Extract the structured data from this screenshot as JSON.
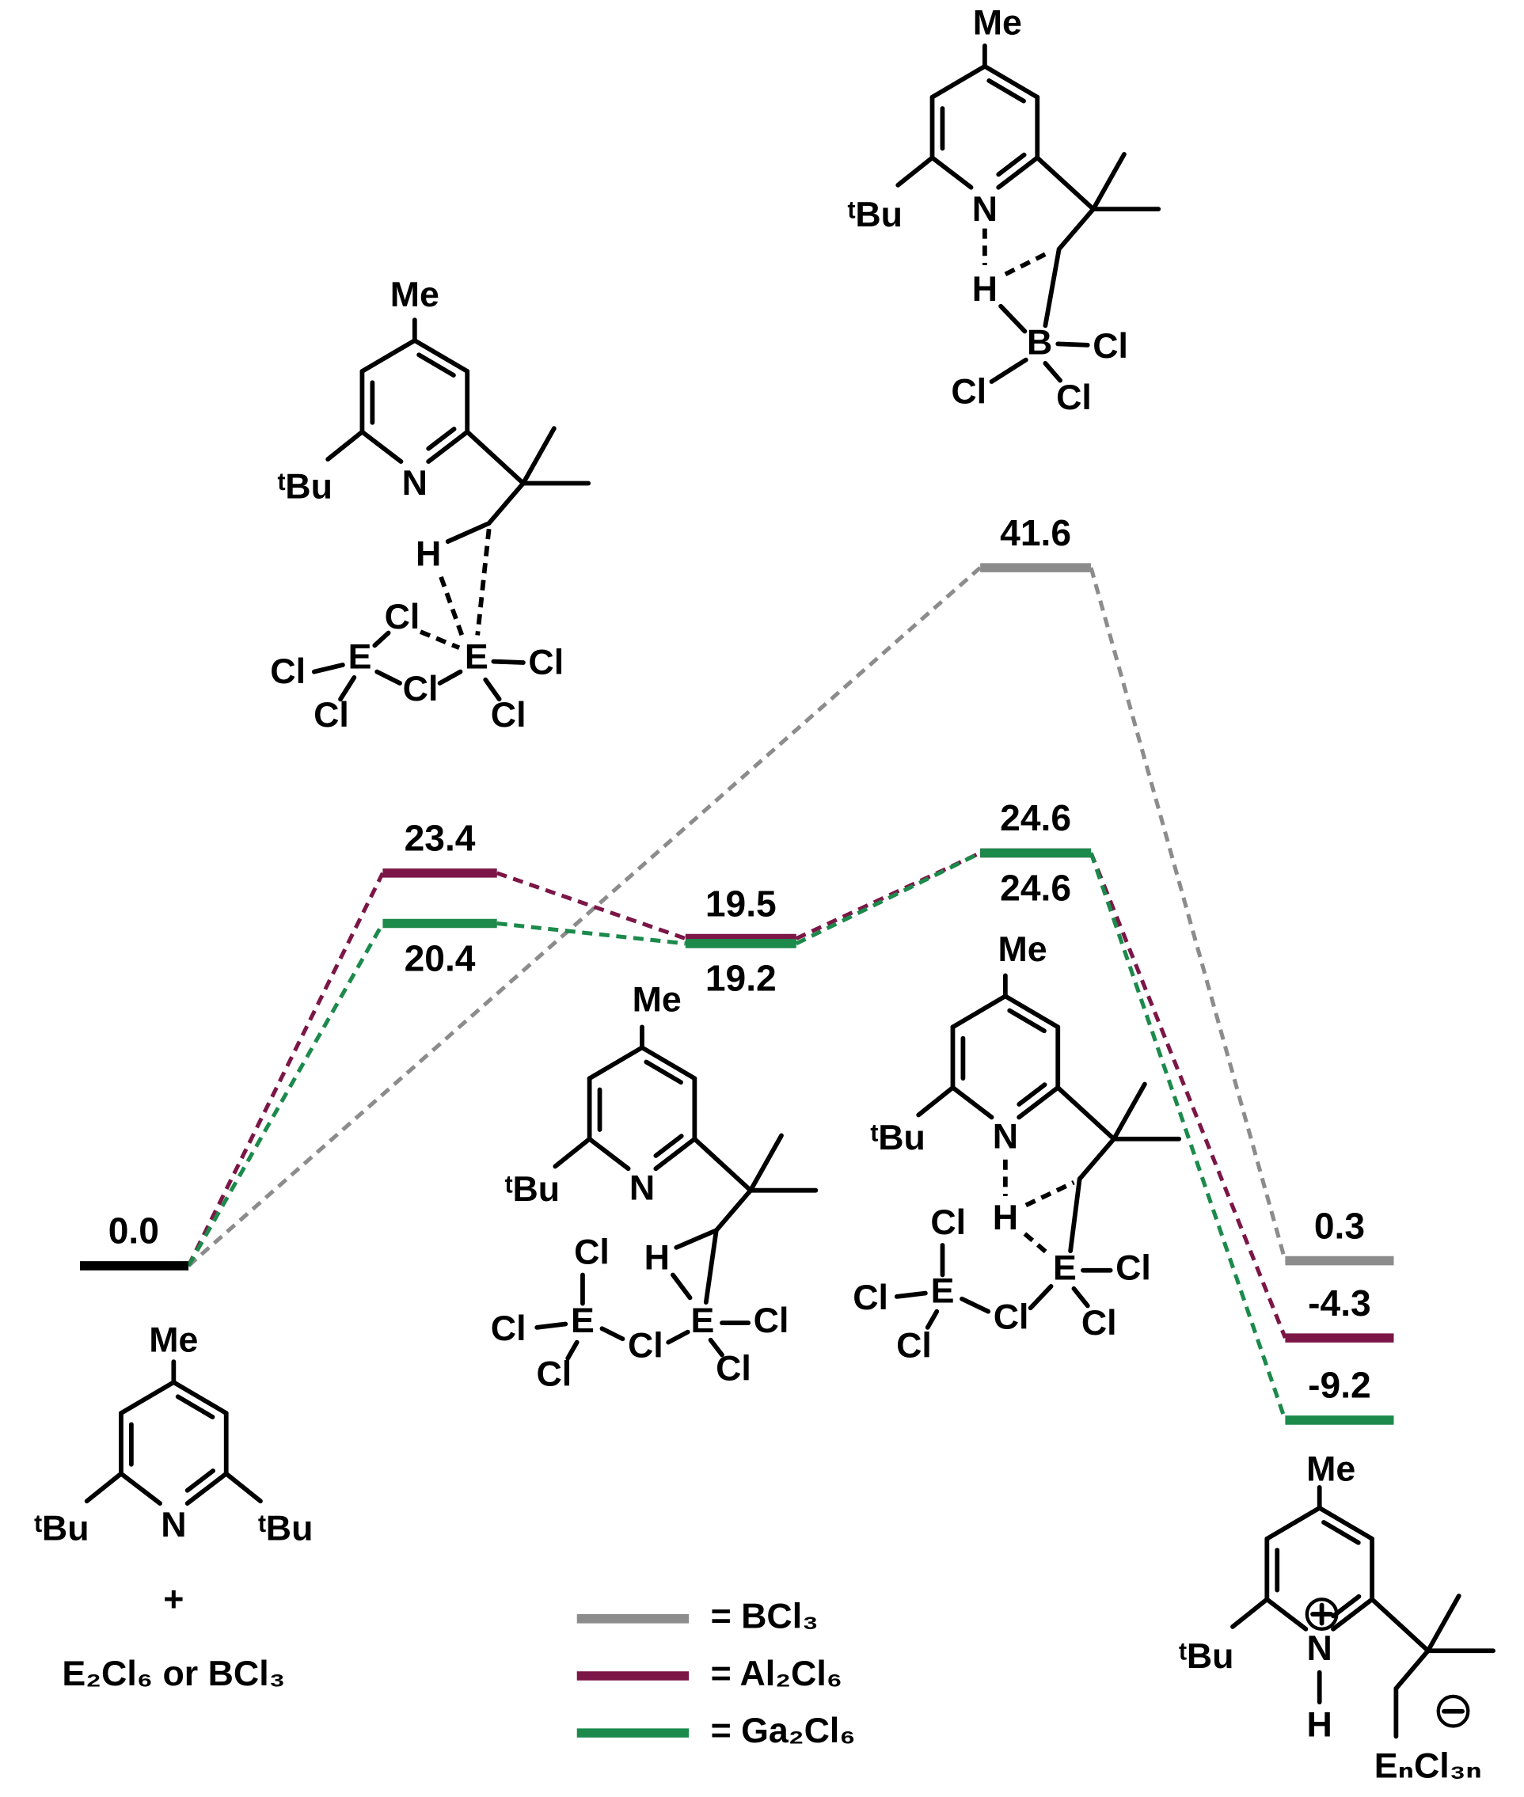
{
  "start": {
    "value": 0,
    "label": "0.0",
    "color": "#000000"
  },
  "series": [
    {
      "name": "= BCl₃",
      "color": "#8c8c8c",
      "values": [
        null,
        null,
        41.6,
        0.3
      ]
    },
    {
      "name": "= Al₂Cl₆",
      "color": "#7b1646",
      "values": [
        23.4,
        19.5,
        24.6,
        -4.3
      ]
    },
    {
      "name": "= Ga₂Cl₆",
      "color": "#1b8a4b",
      "values": [
        20.4,
        19.2,
        24.6,
        -9.2
      ]
    }
  ],
  "structures": [
    {
      "labels": [
        "Me",
        "ᵗBu",
        "N",
        "ᵗBu"
      ],
      "plus": "+",
      "reagent": "E₂Cl₆ or BCl₃"
    },
    {
      "labels": [
        "Me",
        "ᵗBu",
        "N",
        "H",
        "Cl",
        "E",
        "Cl",
        "Cl",
        "Cl",
        "E",
        "Cl",
        "Cl"
      ]
    },
    {
      "labels": [
        "Me",
        "ᵗBu",
        "N",
        "H",
        "B",
        "Cl",
        "Cl",
        "Cl"
      ]
    },
    {
      "labels": [
        "Me",
        "ᵗBu",
        "N",
        "H",
        "Cl",
        "E",
        "Cl",
        "Cl",
        "Cl",
        "E",
        "Cl",
        "Cl"
      ]
    },
    {
      "labels": [
        "Me",
        "ᵗBu",
        "N",
        "H",
        "Cl",
        "E",
        "Cl",
        "Cl",
        "Cl",
        "E",
        "Cl",
        "Cl"
      ]
    },
    {
      "labels": [
        "Me",
        "ᵗBu",
        "N",
        "H",
        "EₙCl₃ₙ"
      ]
    }
  ]
}
